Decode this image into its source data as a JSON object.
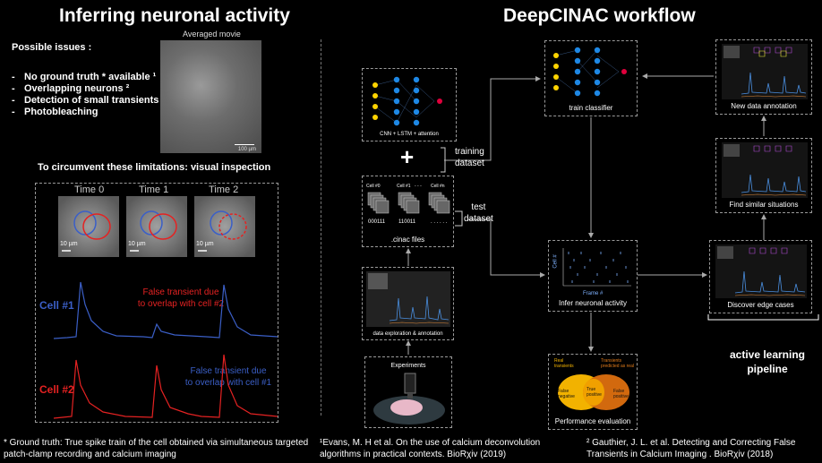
{
  "left": {
    "title": "Inferring neuronal activity",
    "issues_title": "Possible issues :",
    "issues": [
      "No ground truth * available ¹",
      "Overlapping neurons ²",
      "Detection of small transients",
      "Photobleaching"
    ],
    "movie_label": "Averaged movie",
    "scale_movie": "100 µm",
    "circumvent": "To circumvent these limitations: visual inspection",
    "times": [
      "Time 0",
      "Time 1",
      "Time 2"
    ],
    "scale_cell": "10 µm",
    "cell1": "Cell #1",
    "cell2": "Cell #2",
    "false1a": "False transient due",
    "false1b": "to overlap with cell #2",
    "false2a": "False transient due",
    "false2b": "to overlap with cell #1",
    "footnote_a": "* Ground truth: True spike train of the cell obtained via simultaneous targeted",
    "footnote_b": "patch-clamp recording and calcium imaging"
  },
  "right": {
    "title": "DeepCINAC workflow",
    "nn_caption": "CNN + LSTM + attention",
    "plus": "+",
    "training1": "training",
    "training2": "dataset",
    "test1": "test",
    "test2": "dataset",
    "cinac_files": ".cinac files",
    "cell0": "Cell #0",
    "cell1": "Cell #1",
    "celln": "Cell #n",
    "bits0": "000111",
    "bits1": "110011",
    "dots": "- - -",
    "bitsn": ". . . . . .",
    "exploration": "data exploration & annotation",
    "experiments": "Experiments",
    "train": "train classifier",
    "infer": "Infer neuronal activity",
    "infer_xlabel": "Frame #",
    "infer_ylabel": "Cell #",
    "perf": "Performance evaluation",
    "perf_real": "Real transients",
    "perf_pred": "Transients predicted as real",
    "perf_tp": "True positive",
    "perf_fn": "False negative",
    "perf_fp": "False positive",
    "new_annot": "New data annotation",
    "similar": "Find similar situations",
    "edge": "Discover edge cases",
    "active1": "active learning",
    "active2": "pipeline",
    "ref1_a": "¹Evans, M. H et al. On the use of calcium deconvolution",
    "ref1_b": "algorithms in practical contexts. BioRχiv (2019)",
    "ref2_a": "² Gauthier, J. L. et al. Detecting and Correcting False",
    "ref2_b": "Transients in Calcium Imaging . BioRχiv (2018)"
  },
  "colors": {
    "cell1": "#3b5fc7",
    "cell2": "#e52222",
    "arrow": "#aaaaaa",
    "node_yellow": "#ffd400",
    "node_blue": "#1e88e5",
    "node_red": "#e0003c"
  }
}
